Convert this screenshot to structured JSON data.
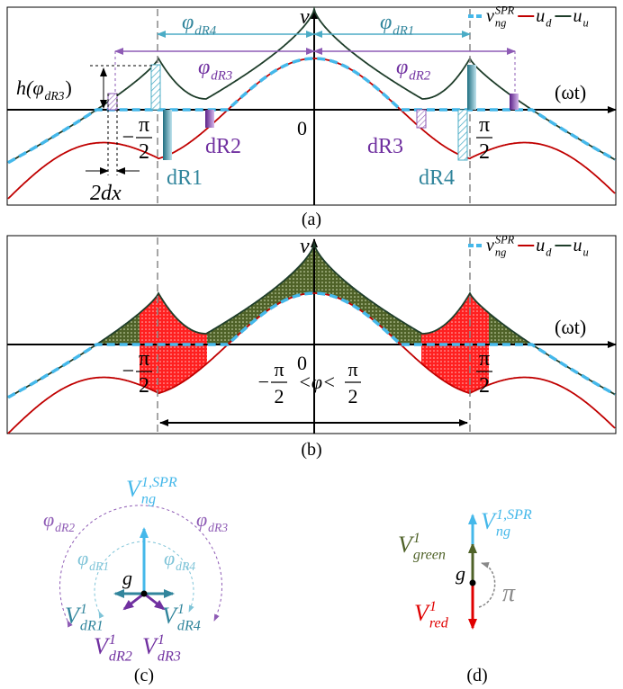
{
  "panel_a": {
    "caption": "(a)",
    "axis_v": "v",
    "axis_t": "(ωt)",
    "origin": "0",
    "labels": [
      {
        "text": "φ",
        "sub": "dR4"
      },
      {
        "text": "φ",
        "sub": "dR1"
      },
      {
        "text": "φ",
        "sub": "dR3"
      },
      {
        "text": "φ",
        "sub": "dR2"
      },
      {
        "text": "h(φ",
        "sub": "dR3",
        "tail": ")"
      },
      {
        "text": "dR2"
      },
      {
        "text": "dR1"
      },
      {
        "text": "dR3"
      },
      {
        "text": "dR4"
      },
      {
        "text": "2dx"
      }
    ],
    "left_tick": {
      "sign": "−",
      "num": "π",
      "den": "2"
    },
    "right_tick": {
      "num": "π",
      "den": "2"
    },
    "legend": [
      {
        "text": "v",
        "sub": "ng",
        "sup": "SPR"
      },
      {
        "text": "u",
        "sub": "d"
      },
      {
        "text": "u",
        "sub": "u"
      }
    ]
  },
  "panel_b": {
    "caption": "(b)",
    "axis_v": "v",
    "axis_t": "(ωt)",
    "origin": "0",
    "left_tick": {
      "sign": "−",
      "num": "π",
      "den": "2"
    },
    "right_tick": {
      "num": "π",
      "den": "2"
    },
    "range": {
      "left": {
        "sign": "−",
        "num": "π",
        "den": "2"
      },
      "middle": "<φ<",
      "right": {
        "num": "π",
        "den": "2"
      }
    },
    "legend": [
      {
        "text": "v",
        "sub": "ng",
        "sup": "SPR"
      },
      {
        "text": "u",
        "sub": "d"
      },
      {
        "text": "u",
        "sub": "u"
      }
    ]
  },
  "panel_c": {
    "caption": "(c)",
    "labels": [
      {
        "text": "V",
        "sub": "ng",
        "sup": "1,SPR"
      },
      {
        "text": "φ",
        "sub": "dR2"
      },
      {
        "text": "φ",
        "sub": "dR3"
      },
      {
        "text": "φ",
        "sub": "dR1"
      },
      {
        "text": "φ",
        "sub": "dR4"
      },
      {
        "text": "g"
      },
      {
        "text": "V",
        "sub": "dR1",
        "sup": "1"
      },
      {
        "text": "V",
        "sub": "dR4",
        "sup": "1"
      },
      {
        "text": "V",
        "sub": "dR2",
        "sup": "1"
      },
      {
        "text": "V",
        "sub": "dR3",
        "sup": "1"
      }
    ]
  },
  "panel_d": {
    "caption": "(d)",
    "labels": [
      {
        "text": "V",
        "sub": "ng",
        "sup": "1,SPR"
      },
      {
        "text": "V",
        "sub": "green",
        "sup": "1"
      },
      {
        "text": "g"
      },
      {
        "text": "π"
      },
      {
        "text": "V",
        "sub": "red",
        "sup": "1"
      }
    ]
  }
}
